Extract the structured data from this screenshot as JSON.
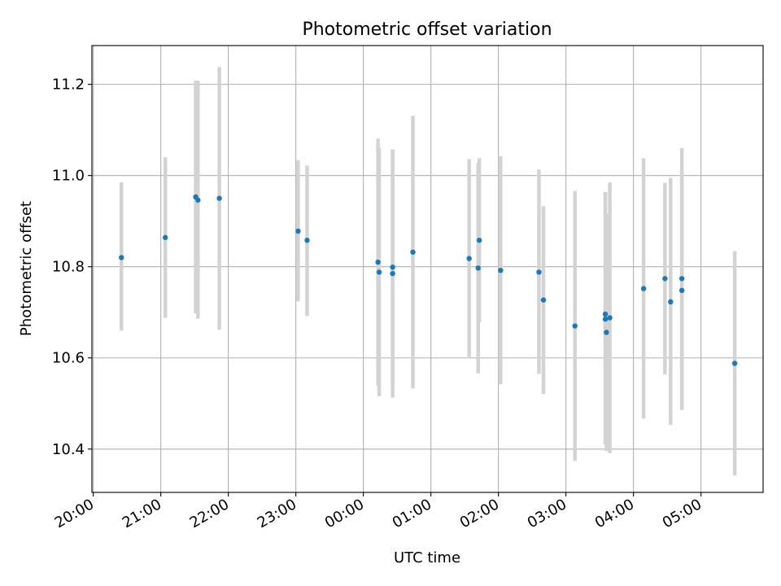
{
  "chart_data": {
    "type": "scatter",
    "title": "Photometric offset variation",
    "xlabel": "UTC time",
    "ylabel": "Photometric offset",
    "x_axis": {
      "type": "time",
      "unit": "hours since 20:00 UTC",
      "range": [
        -0.02,
        9.92
      ],
      "ticks": [
        {
          "value": 0,
          "label": "20:00"
        },
        {
          "value": 1,
          "label": "21:00"
        },
        {
          "value": 2,
          "label": "22:00"
        },
        {
          "value": 3,
          "label": "23:00"
        },
        {
          "value": 4,
          "label": "00:00"
        },
        {
          "value": 5,
          "label": "01:00"
        },
        {
          "value": 6,
          "label": "02:00"
        },
        {
          "value": 7,
          "label": "03:00"
        },
        {
          "value": 8,
          "label": "04:00"
        },
        {
          "value": 9,
          "label": "05:00"
        }
      ]
    },
    "y_axis": {
      "range": [
        10.305,
        11.285
      ],
      "ticks": [
        {
          "value": 10.4,
          "label": "10.4"
        },
        {
          "value": 10.6,
          "label": "10.6"
        },
        {
          "value": 10.8,
          "label": "10.8"
        },
        {
          "value": 11.0,
          "label": "11.0"
        },
        {
          "value": 11.2,
          "label": "11.2"
        }
      ]
    },
    "grid": true,
    "marker_color": "#1f77b4",
    "errorbar_color": "#d3d3d3",
    "points": [
      {
        "time": "20:25",
        "y": 10.82,
        "err_low": 10.66,
        "err_high": 10.985
      },
      {
        "time": "21:04",
        "y": 10.864,
        "err_low": 10.688,
        "err_high": 11.04
      },
      {
        "time": "21:31",
        "y": 10.953,
        "err_low": 10.698,
        "err_high": 11.208
      },
      {
        "time": "21:33",
        "y": 10.946,
        "err_low": 10.686,
        "err_high": 11.208
      },
      {
        "time": "21:52",
        "y": 10.95,
        "err_low": 10.662,
        "err_high": 11.238
      },
      {
        "time": "23:02",
        "y": 10.878,
        "err_low": 10.724,
        "err_high": 11.034
      },
      {
        "time": "23:10",
        "y": 10.858,
        "err_low": 10.692,
        "err_high": 11.022
      },
      {
        "time": "00:13",
        "y": 10.81,
        "err_low": 10.54,
        "err_high": 11.081
      },
      {
        "time": "00:14",
        "y": 10.788,
        "err_low": 10.516,
        "err_high": 11.06
      },
      {
        "time": "00:26",
        "y": 10.799,
        "err_low": 10.541,
        "err_high": 11.057
      },
      {
        "time": "00:26",
        "y": 10.785,
        "err_low": 10.513,
        "err_high": 11.057
      },
      {
        "time": "00:44",
        "y": 10.832,
        "err_low": 10.533,
        "err_high": 11.131
      },
      {
        "time": "01:34",
        "y": 10.818,
        "err_low": 10.602,
        "err_high": 11.036
      },
      {
        "time": "01:42",
        "y": 10.797,
        "err_low": 10.566,
        "err_high": 11.028
      },
      {
        "time": "01:43",
        "y": 10.858,
        "err_low": 10.678,
        "err_high": 11.038
      },
      {
        "time": "02:02",
        "y": 10.792,
        "err_low": 10.542,
        "err_high": 11.042
      },
      {
        "time": "02:36",
        "y": 10.788,
        "err_low": 10.565,
        "err_high": 11.013
      },
      {
        "time": "02:40",
        "y": 10.727,
        "err_low": 10.521,
        "err_high": 10.933
      },
      {
        "time": "03:08",
        "y": 10.67,
        "err_low": 10.374,
        "err_high": 10.966
      },
      {
        "time": "03:35",
        "y": 10.696,
        "err_low": 10.41,
        "err_high": 10.964
      },
      {
        "time": "03:35",
        "y": 10.685,
        "err_low": 10.41,
        "err_high": 10.964
      },
      {
        "time": "03:36",
        "y": 10.656,
        "err_low": 10.396,
        "err_high": 10.916
      },
      {
        "time": "03:39",
        "y": 10.688,
        "err_low": 10.391,
        "err_high": 10.985
      },
      {
        "time": "04:09",
        "y": 10.752,
        "err_low": 10.467,
        "err_high": 11.038
      },
      {
        "time": "04:28",
        "y": 10.774,
        "err_low": 10.564,
        "err_high": 10.984
      },
      {
        "time": "04:33",
        "y": 10.723,
        "err_low": 10.453,
        "err_high": 10.995
      },
      {
        "time": "04:43",
        "y": 10.748,
        "err_low": 10.486,
        "err_high": 11.01
      },
      {
        "time": "04:43",
        "y": 10.774,
        "err_low": 10.488,
        "err_high": 11.06
      },
      {
        "time": "05:30",
        "y": 10.588,
        "err_low": 10.342,
        "err_high": 10.834
      }
    ]
  }
}
